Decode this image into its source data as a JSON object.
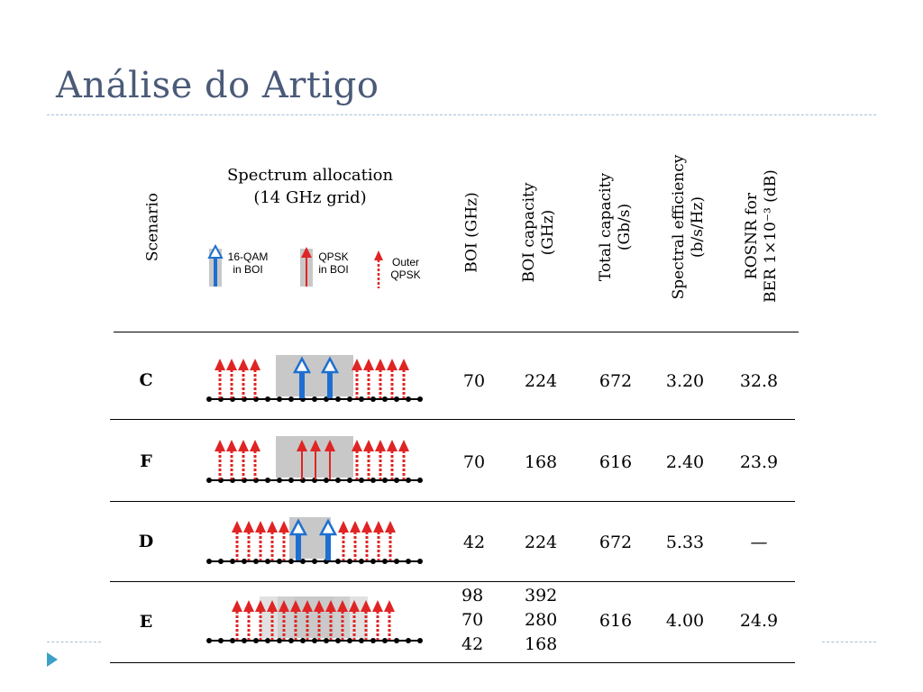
{
  "slide": {
    "title": "Análise do Artigo"
  },
  "table": {
    "headers": {
      "scenario": "Scenario",
      "spectrum_line1": "Spectrum allocation",
      "spectrum_line2": "(14 GHz grid)",
      "boi": "BOI (GHz)",
      "boi_capacity_l1": "BOI capacity",
      "boi_capacity_l2": "(GHz)",
      "total_capacity_l1": "Total capacity",
      "total_capacity_l2": "(Gb/s)",
      "spectral_eff_l1": "Spectral efficiency",
      "spectral_eff_l2": "(b/s/Hz)",
      "rosnr_l1": "ROSNR for",
      "rosnr_l2": "BER 1×10⁻³ (dB)"
    },
    "legend": {
      "qam16_l1": "16-QAM",
      "qam16_l2": "in BOI",
      "qpsk_l1": "QPSK",
      "qpsk_l2": "in BOI",
      "outer_l1": "Outer",
      "outer_l2": "QPSK"
    },
    "rows": [
      {
        "scenario": "C",
        "boi": "70",
        "boi_capacity": "224",
        "total_capacity": "672",
        "spectral_efficiency": "3.20",
        "rosnr": "32.8"
      },
      {
        "scenario": "F",
        "boi": "70",
        "boi_capacity": "168",
        "total_capacity": "616",
        "spectral_efficiency": "2.40",
        "rosnr": "23.9"
      },
      {
        "scenario": "D",
        "boi": "42",
        "boi_capacity": "224",
        "total_capacity": "672",
        "spectral_efficiency": "5.33",
        "rosnr": "—"
      },
      {
        "scenario": "E",
        "boi": [
          "98",
          "70",
          "42"
        ],
        "boi_capacity": [
          "392",
          "280",
          "168"
        ],
        "total_capacity": "616",
        "spectral_efficiency": "4.00",
        "rosnr": "24.9"
      }
    ]
  },
  "colors": {
    "title": "#4a5a78",
    "rule": "#a6bfd4",
    "qpsk_red": "#e02424",
    "qam_blue": "#1e6fd0",
    "boi_gray": "#c8c8c8",
    "bullet": "#3ca0c8"
  }
}
